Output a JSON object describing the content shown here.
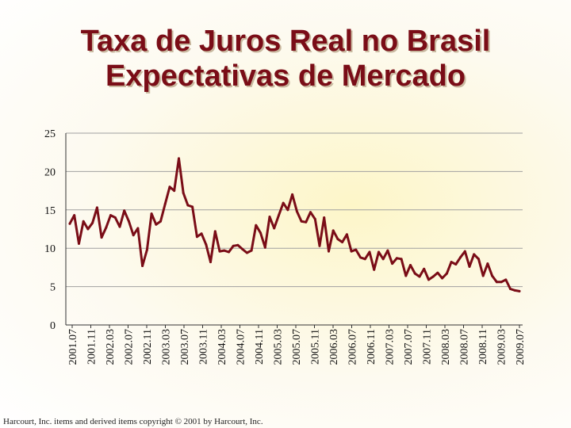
{
  "title_line1": "Taxa de Juros Real no Brasil",
  "title_line2": "Expectativas de Mercado",
  "footer": "Harcourt, Inc. items and derived items copyright © 2001 by Harcourt, Inc.",
  "colors": {
    "line": "#7a0d17",
    "grid": "#a0a0a0",
    "title": "#7a0d17"
  },
  "chart_data": {
    "type": "line",
    "title": "Taxa de Juros Real no Brasil — Expectativas de Mercado",
    "xlabel": "",
    "ylabel": "",
    "ylim": [
      0,
      25
    ],
    "yticks": [
      0,
      5,
      10,
      15,
      20,
      25
    ],
    "grid": true,
    "x_tick_labels": [
      "2001.07",
      "2001.11",
      "2002.03",
      "2002.07",
      "2002.11",
      "2003.03",
      "2003.07",
      "2003.11",
      "2004.03",
      "2004.07",
      "2004.11",
      "2005.03",
      "2005.07",
      "2005.11",
      "2006.03",
      "2006.07",
      "2006.11",
      "2007.03",
      "2007.07",
      "2007.11",
      "2008.03",
      "2008.07",
      "2008.11",
      "2009.03",
      "2009.07"
    ],
    "series": [
      {
        "name": "Taxa de Juros Real",
        "values": [
          13.2,
          14.3,
          10.6,
          13.5,
          12.5,
          13.3,
          15.3,
          11.4,
          12.7,
          14.3,
          14.0,
          12.8,
          14.9,
          13.5,
          11.7,
          12.6,
          7.7,
          9.8,
          14.5,
          13.1,
          13.5,
          15.8,
          18.0,
          17.5,
          21.7,
          17.2,
          15.6,
          15.4,
          11.5,
          11.9,
          10.5,
          8.2,
          12.2,
          9.6,
          9.7,
          9.5,
          10.3,
          10.4,
          9.9,
          9.4,
          9.7,
          13.0,
          12.0,
          10.1,
          14.1,
          12.6,
          14.3,
          15.9,
          15.0,
          17.0,
          14.8,
          13.5,
          13.4,
          14.7,
          13.8,
          10.3,
          14.0,
          9.6,
          12.3,
          11.2,
          10.8,
          11.8,
          9.6,
          9.8,
          8.8,
          8.6,
          9.5,
          7.2,
          9.5,
          8.6,
          9.7,
          8.0,
          8.7,
          8.6,
          6.4,
          7.8,
          6.7,
          6.3,
          7.3,
          5.9,
          6.3,
          6.8,
          6.1,
          6.7,
          8.2,
          7.9,
          8.8,
          9.6,
          7.6,
          9.2,
          8.6,
          6.4,
          8.0,
          6.4,
          5.6,
          5.6,
          5.9,
          4.7,
          4.5,
          4.4
        ]
      }
    ]
  }
}
